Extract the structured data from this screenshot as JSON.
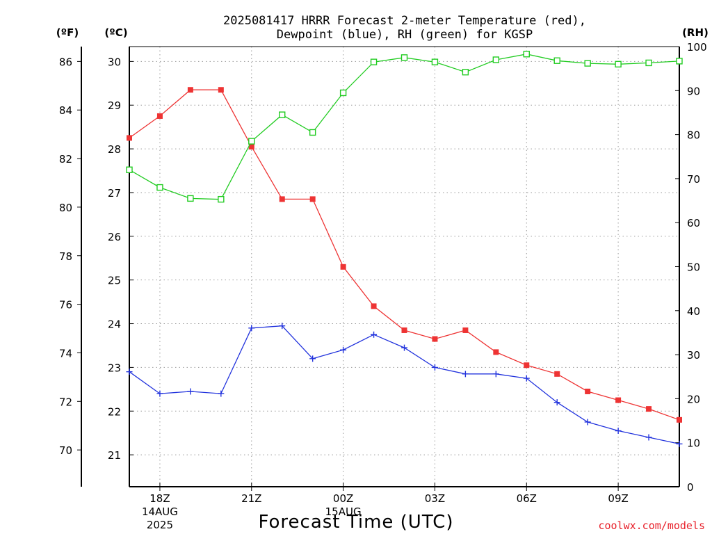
{
  "chart_data": {
    "type": "line",
    "title_lines": [
      "2025081417 HRRR Forecast 2-meter Temperature (red),",
      "Dewpoint (blue), RH (green) for KGSP"
    ],
    "xlabel": "Forecast Time (UTC)",
    "credit": "coolwx.com/models",
    "units": {
      "fahrenheit": "(ºF)",
      "celsius": "(ºC)",
      "rh": "(RH)"
    },
    "x_hours": [
      17,
      18,
      19,
      20,
      21,
      22,
      23,
      24,
      25,
      26,
      27,
      28,
      29,
      30,
      31,
      32,
      33,
      34,
      35
    ],
    "x_range": [
      17,
      35
    ],
    "x_ticks": [
      {
        "hour": 18,
        "lines": [
          "18Z",
          "14AUG",
          "2025"
        ]
      },
      {
        "hour": 21,
        "lines": [
          "21Z"
        ]
      },
      {
        "hour": 24,
        "lines": [
          "00Z",
          "15AUG"
        ]
      },
      {
        "hour": 27,
        "lines": [
          "03Z"
        ]
      },
      {
        "hour": 30,
        "lines": [
          "06Z"
        ]
      },
      {
        "hour": 33,
        "lines": [
          "09Z"
        ]
      }
    ],
    "celsius_axis": {
      "range": [
        20.27,
        30.34
      ],
      "ticks": [
        21,
        22,
        23,
        24,
        25,
        26,
        27,
        28,
        29,
        30
      ]
    },
    "fahrenheit_axis": {
      "ticks": [
        70,
        72,
        74,
        76,
        78,
        80,
        82,
        84,
        86
      ]
    },
    "rh_axis": {
      "range": [
        0,
        100
      ],
      "ticks": [
        0,
        10,
        20,
        30,
        40,
        50,
        60,
        70,
        80,
        90,
        100
      ]
    },
    "grid": true,
    "series": [
      {
        "name": "Temperature (red)",
        "axis": "celsius",
        "color": "#ee3333",
        "marker": "filled-square",
        "values": [
          28.25,
          28.75,
          29.35,
          29.35,
          28.05,
          26.85,
          26.85,
          25.3,
          24.4,
          23.85,
          23.65,
          23.85,
          23.35,
          23.05,
          22.85,
          22.45,
          22.25,
          22.05,
          21.8
        ]
      },
      {
        "name": "Dewpoint (blue)",
        "axis": "celsius",
        "color": "#2233dd",
        "marker": "plus",
        "values": [
          22.9,
          22.4,
          22.45,
          22.4,
          23.9,
          23.95,
          23.2,
          23.4,
          23.75,
          23.45,
          23.0,
          22.85,
          22.85,
          22.75,
          22.2,
          21.75,
          21.55,
          21.4,
          21.25
        ]
      },
      {
        "name": "RH (green)",
        "axis": "rh",
        "color": "#22cc22",
        "marker": "open-square",
        "values": [
          72,
          68,
          65.5,
          65.3,
          78.5,
          84.5,
          80.5,
          89.5,
          96.5,
          97.5,
          96.5,
          94.2,
          97,
          98.3,
          96.8,
          96.2,
          96,
          96.3,
          96.7
        ]
      }
    ]
  }
}
